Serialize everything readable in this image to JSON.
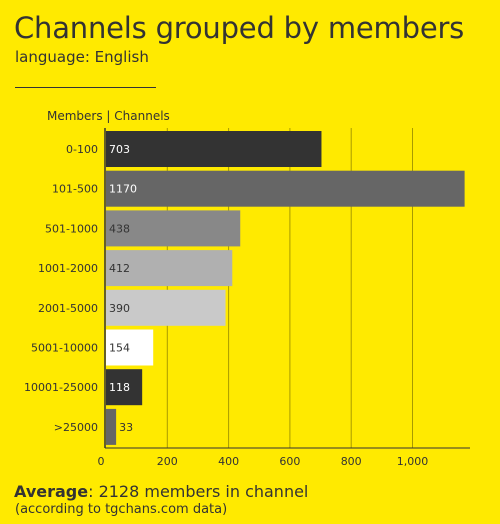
{
  "header": {
    "title": "Channels grouped by members",
    "subtitle": "language: English",
    "rule": "_______________"
  },
  "footer": {
    "average_label": "Average",
    "average_text": ": 2128 members in channel",
    "source": "(according to tgchans.com data)"
  },
  "colors": {
    "background": "#FFEA00",
    "text": "#333333",
    "grid": "#A89A00"
  },
  "chart_data": {
    "type": "bar",
    "orientation": "horizontal",
    "axis_header": "Members | Channels",
    "categories": [
      "0-100",
      "101-500",
      "501-1000",
      "1001-2000",
      "2001-5000",
      "5001-10000",
      "10001-25000",
      ">25000"
    ],
    "values": [
      703,
      1170,
      438,
      412,
      390,
      154,
      118,
      33
    ],
    "bar_colors": [
      "#333333",
      "#666666",
      "#888888",
      "#B0B0B0",
      "#C9C9C9",
      "#FFFFFF",
      "#333333",
      "#666666"
    ],
    "x_ticks": [
      0,
      200,
      400,
      600,
      800,
      1000
    ],
    "x_tick_labels": [
      "0",
      "200",
      "400",
      "600",
      "800",
      "1,000"
    ],
    "xlim": [
      0,
      1200
    ],
    "grid": true
  }
}
